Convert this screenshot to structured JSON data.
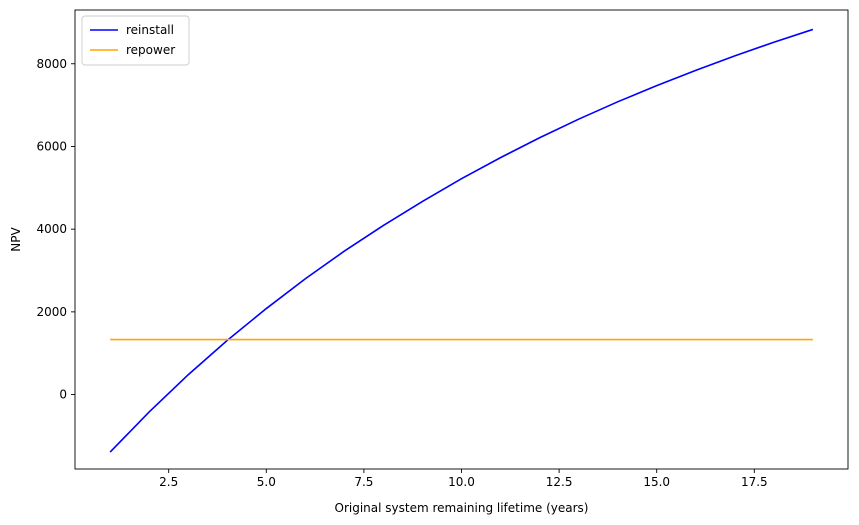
{
  "chart_data": {
    "type": "line",
    "title": "",
    "xlabel": "Original system remaining lifetime (years)",
    "ylabel": "NPV",
    "xlim": [
      0.1,
      19.9
    ],
    "ylim": [
      -1800,
      9300
    ],
    "x_ticks": [
      2.5,
      5.0,
      7.5,
      10.0,
      12.5,
      15.0,
      17.5
    ],
    "x_tick_labels": [
      "2.5",
      "5.0",
      "7.5",
      "10.0",
      "12.5",
      "15.0",
      "17.5"
    ],
    "y_ticks": [
      0,
      2000,
      4000,
      6000,
      8000
    ],
    "y_tick_labels": [
      "0",
      "2000",
      "4000",
      "6000",
      "8000"
    ],
    "grid": false,
    "legend_position": "top-left",
    "x": [
      1,
      2,
      3,
      4,
      5,
      6,
      7,
      8,
      9,
      10,
      11,
      12,
      13,
      14,
      15,
      16,
      17,
      18,
      19
    ],
    "series": [
      {
        "name": "reinstall",
        "color": "#0000ff",
        "values": [
          -1390,
          -420,
          480,
          1310,
          2080,
          2800,
          3470,
          4090,
          4670,
          5220,
          5730,
          6210,
          6660,
          7080,
          7470,
          7840,
          8190,
          8520,
          8830
        ]
      },
      {
        "name": "repower",
        "color": "#ffa500",
        "values": [
          1330,
          1330,
          1330,
          1330,
          1330,
          1330,
          1330,
          1330,
          1330,
          1330,
          1330,
          1330,
          1330,
          1330,
          1330,
          1330,
          1330,
          1330,
          1330
        ]
      }
    ]
  }
}
